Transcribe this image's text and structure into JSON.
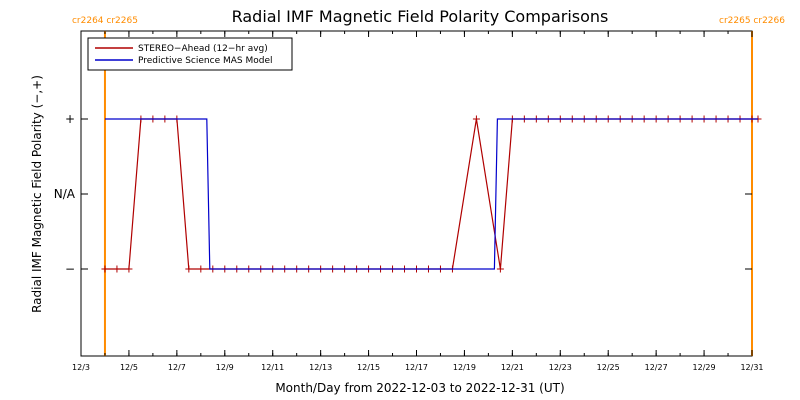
{
  "chart_data": {
    "type": "line",
    "title": "Radial IMF Magnetic Field Polarity Comparisons",
    "xlabel": "Month/Day from 2022-12-03 to 2022-12-31 (UT)",
    "ylabel": "Radial IMF Magnetic Field Polarity (−,+)",
    "xlim": [
      "2022-12-03",
      "2022-12-31"
    ],
    "x_tick_labels": [
      "12/3",
      "12/5",
      "12/7",
      "12/9",
      "12/11",
      "12/13",
      "12/15",
      "12/17",
      "12/19",
      "12/21",
      "12/23",
      "12/25",
      "12/27",
      "12/29",
      "12/31"
    ],
    "y_categories": [
      "−",
      "N/A",
      "+"
    ],
    "y_tick_labels": [
      "+",
      "N/A",
      "−"
    ],
    "grid": false,
    "legend_position": "top-left",
    "carrington_markers": [
      {
        "date": "2022-12-04",
        "labels": [
          "cr2264",
          "cr2265"
        ],
        "color": "#ff8c00"
      },
      {
        "date": "2022-12-31",
        "labels": [
          "cr2265",
          "cr2266"
        ],
        "color": "#ff8c00"
      }
    ],
    "series": [
      {
        "name": "STEREO−Ahead (12−hr avg)",
        "color": "#b00000",
        "markers": true,
        "points": [
          [
            "2022-12-04 00:00",
            "−"
          ],
          [
            "2022-12-04 12:00",
            "−"
          ],
          [
            "2022-12-05 00:00",
            "−"
          ],
          [
            "2022-12-05 12:00",
            "+"
          ],
          [
            "2022-12-06 00:00",
            "+"
          ],
          [
            "2022-12-06 12:00",
            "+"
          ],
          [
            "2022-12-07 00:00",
            "+"
          ],
          [
            "2022-12-07 12:00",
            "−"
          ],
          [
            "2022-12-08 00:00",
            "−"
          ],
          [
            "2022-12-08 12:00",
            "−"
          ],
          [
            "2022-12-09 00:00",
            "−"
          ],
          [
            "2022-12-09 12:00",
            "−"
          ],
          [
            "2022-12-10 00:00",
            "−"
          ],
          [
            "2022-12-10 12:00",
            "−"
          ],
          [
            "2022-12-11 00:00",
            "−"
          ],
          [
            "2022-12-11 12:00",
            "−"
          ],
          [
            "2022-12-12 00:00",
            "−"
          ],
          [
            "2022-12-12 12:00",
            "−"
          ],
          [
            "2022-12-13 00:00",
            "−"
          ],
          [
            "2022-12-13 12:00",
            "−"
          ],
          [
            "2022-12-14 00:00",
            "−"
          ],
          [
            "2022-12-14 12:00",
            "−"
          ],
          [
            "2022-12-15 00:00",
            "−"
          ],
          [
            "2022-12-15 12:00",
            "−"
          ],
          [
            "2022-12-16 00:00",
            "−"
          ],
          [
            "2022-12-16 12:00",
            "−"
          ],
          [
            "2022-12-17 00:00",
            "−"
          ],
          [
            "2022-12-17 12:00",
            "−"
          ],
          [
            "2022-12-18 00:00",
            "−"
          ],
          [
            "2022-12-18 12:00",
            "−"
          ],
          [
            "2022-12-19 12:00",
            "+"
          ],
          [
            "2022-12-20 12:00",
            "−"
          ],
          [
            "2022-12-21 00:00",
            "+"
          ],
          [
            "2022-12-21 12:00",
            "+"
          ],
          [
            "2022-12-22 00:00",
            "+"
          ],
          [
            "2022-12-22 12:00",
            "+"
          ],
          [
            "2022-12-23 00:00",
            "+"
          ],
          [
            "2022-12-23 12:00",
            "+"
          ],
          [
            "2022-12-24 00:00",
            "+"
          ],
          [
            "2022-12-24 12:00",
            "+"
          ],
          [
            "2022-12-25 00:00",
            "+"
          ],
          [
            "2022-12-25 12:00",
            "+"
          ],
          [
            "2022-12-26 00:00",
            "+"
          ],
          [
            "2022-12-26 12:00",
            "+"
          ],
          [
            "2022-12-27 00:00",
            "+"
          ],
          [
            "2022-12-27 12:00",
            "+"
          ],
          [
            "2022-12-28 00:00",
            "+"
          ],
          [
            "2022-12-28 12:00",
            "+"
          ],
          [
            "2022-12-29 00:00",
            "+"
          ],
          [
            "2022-12-29 12:00",
            "+"
          ],
          [
            "2022-12-30 00:00",
            "+"
          ],
          [
            "2022-12-30 12:00",
            "+"
          ],
          [
            "2022-12-31 00:00",
            "+"
          ],
          [
            "2022-12-31 06:00",
            "+"
          ]
        ]
      },
      {
        "name": "Predictive Science MAS Model",
        "color": "#0000cc",
        "markers": false,
        "points": [
          [
            "2022-12-04 00:00",
            "+"
          ],
          [
            "2022-12-08 06:00",
            "+"
          ],
          [
            "2022-12-08 09:00",
            "−"
          ],
          [
            "2022-12-20 06:00",
            "−"
          ],
          [
            "2022-12-20 09:00",
            "+"
          ],
          [
            "2022-12-31 06:00",
            "+"
          ]
        ]
      }
    ]
  }
}
